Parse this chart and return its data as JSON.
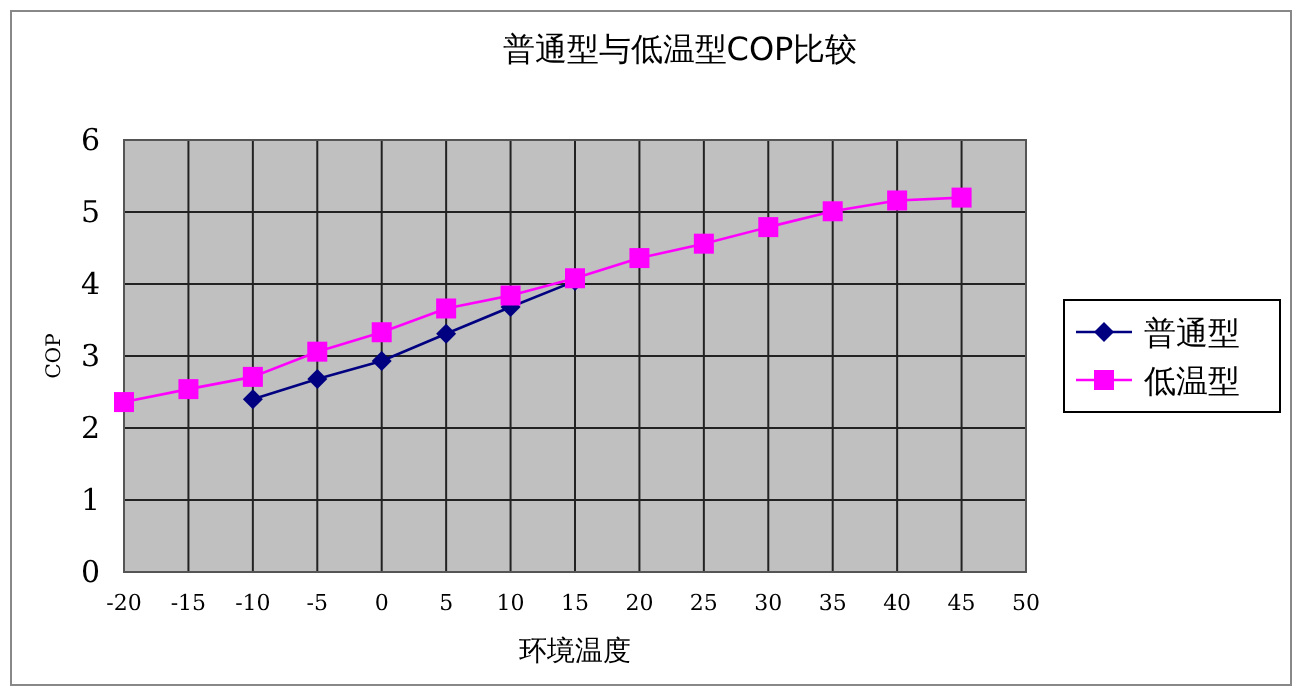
{
  "chart_data": {
    "type": "line",
    "title": "普通型与低温型COP比较",
    "xlabel": "环境温度",
    "ylabel": "COP",
    "x": [
      -20,
      -15,
      -10,
      -5,
      0,
      5,
      10,
      15,
      20,
      25,
      30,
      35,
      40,
      45
    ],
    "series": [
      {
        "name": "普通型",
        "color": "#000080",
        "marker": "diamond",
        "values": [
          null,
          null,
          2.4,
          2.68,
          2.93,
          3.31,
          3.68,
          4.04,
          null,
          null,
          null,
          null,
          null,
          null
        ]
      },
      {
        "name": "低温型",
        "color": "#ff00ff",
        "marker": "square",
        "values": [
          2.36,
          2.54,
          2.71,
          3.06,
          3.33,
          3.66,
          3.84,
          4.08,
          4.36,
          4.56,
          4.79,
          5.01,
          5.16,
          5.2
        ]
      }
    ],
    "xlim": [
      -20,
      50
    ],
    "xticks": [
      -20,
      -15,
      -10,
      -5,
      0,
      5,
      10,
      15,
      20,
      25,
      30,
      35,
      40,
      45,
      50
    ],
    "ylim": [
      0,
      6
    ],
    "yticks": [
      0,
      1,
      2,
      3,
      4,
      5,
      6
    ],
    "grid": true,
    "legend": "right",
    "line_style": "solid"
  }
}
